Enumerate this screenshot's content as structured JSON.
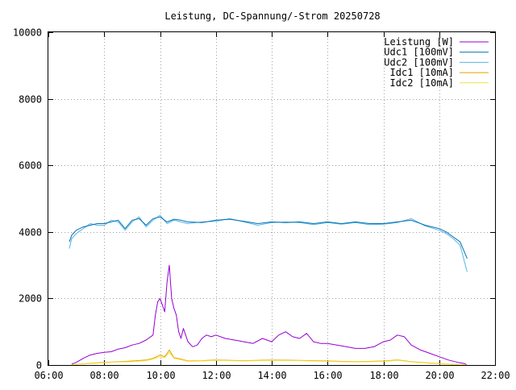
{
  "chart_data": {
    "type": "line",
    "title": "Leistung, DC-Spannung/-Strom 20250728",
    "xlabel": "",
    "ylabel": "",
    "xlim": [
      "06:00",
      "22:00"
    ],
    "ylim": [
      0,
      10000
    ],
    "x_ticks": [
      "06:00",
      "08:00",
      "10:00",
      "12:00",
      "14:00",
      "16:00",
      "18:00",
      "20:00",
      "22:00"
    ],
    "y_ticks": [
      "0",
      "2000",
      "4000",
      "6000",
      "8000",
      "10000"
    ],
    "grid": true,
    "legend_position": "top-right",
    "series": [
      {
        "name": "Leistung [W]",
        "color": "#9400d3",
        "x": [
          "06:50",
          "07:00",
          "07:15",
          "07:30",
          "07:45",
          "08:00",
          "08:15",
          "08:30",
          "08:45",
          "09:00",
          "09:15",
          "09:30",
          "09:45",
          "09:50",
          "09:55",
          "10:00",
          "10:05",
          "10:10",
          "10:15",
          "10:20",
          "10:25",
          "10:30",
          "10:35",
          "10:40",
          "10:45",
          "10:50",
          "11:00",
          "11:10",
          "11:20",
          "11:30",
          "11:40",
          "11:50",
          "12:00",
          "12:20",
          "12:40",
          "13:00",
          "13:20",
          "13:40",
          "14:00",
          "14:15",
          "14:30",
          "14:45",
          "15:00",
          "15:15",
          "15:30",
          "15:45",
          "16:00",
          "16:20",
          "16:40",
          "17:00",
          "17:20",
          "17:40",
          "18:00",
          "18:15",
          "18:30",
          "18:45",
          "19:00",
          "19:20",
          "19:40",
          "20:00",
          "20:20",
          "20:40",
          "20:55",
          "21:00"
        ],
        "values": [
          30,
          80,
          200,
          300,
          350,
          380,
          400,
          480,
          520,
          600,
          650,
          750,
          900,
          1500,
          1900,
          2000,
          1800,
          1600,
          2500,
          3000,
          2000,
          1700,
          1500,
          1000,
          800,
          1100,
          700,
          550,
          600,
          800,
          900,
          850,
          900,
          800,
          750,
          700,
          650,
          800,
          700,
          900,
          1000,
          850,
          800,
          950,
          700,
          650,
          650,
          600,
          550,
          500,
          500,
          550,
          700,
          750,
          900,
          850,
          600,
          450,
          350,
          250,
          150,
          80,
          40,
          0
        ]
      },
      {
        "name": "Udc1 [100mV]",
        "color": "#0072b2",
        "x": [
          "06:45",
          "06:50",
          "07:00",
          "07:15",
          "07:30",
          "07:45",
          "08:00",
          "08:15",
          "08:30",
          "08:45",
          "09:00",
          "09:15",
          "09:30",
          "09:45",
          "10:00",
          "10:15",
          "10:30",
          "10:45",
          "11:00",
          "11:30",
          "12:00",
          "12:30",
          "13:00",
          "13:30",
          "14:00",
          "14:30",
          "15:00",
          "15:30",
          "16:00",
          "16:30",
          "17:00",
          "17:30",
          "18:00",
          "18:30",
          "19:00",
          "19:30",
          "20:00",
          "20:15",
          "20:30",
          "20:45",
          "21:00"
        ],
        "values": [
          3700,
          3900,
          4050,
          4150,
          4200,
          4250,
          4250,
          4300,
          4350,
          4100,
          4350,
          4400,
          4200,
          4400,
          4450,
          4300,
          4380,
          4350,
          4300,
          4280,
          4350,
          4380,
          4320,
          4250,
          4300,
          4280,
          4300,
          4250,
          4300,
          4250,
          4300,
          4250,
          4250,
          4300,
          4350,
          4200,
          4100,
          4000,
          3850,
          3700,
          3200
        ]
      },
      {
        "name": "Udc2 [100mV]",
        "color": "#56b4e9",
        "x": [
          "06:45",
          "06:50",
          "07:00",
          "07:15",
          "07:30",
          "07:45",
          "08:00",
          "08:15",
          "08:30",
          "08:45",
          "09:00",
          "09:15",
          "09:30",
          "09:45",
          "10:00",
          "10:15",
          "10:30",
          "10:45",
          "11:00",
          "11:30",
          "12:00",
          "12:30",
          "13:00",
          "13:30",
          "14:00",
          "14:30",
          "15:00",
          "15:30",
          "16:00",
          "16:30",
          "17:00",
          "17:30",
          "18:00",
          "18:30",
          "19:00",
          "19:30",
          "20:00",
          "20:15",
          "20:30",
          "20:45",
          "21:00"
        ],
        "values": [
          3500,
          3800,
          3950,
          4100,
          4250,
          4200,
          4200,
          4350,
          4300,
          4050,
          4300,
          4450,
          4150,
          4350,
          4500,
          4250,
          4350,
          4300,
          4250,
          4300,
          4320,
          4400,
          4300,
          4200,
          4280,
          4300,
          4280,
          4220,
          4280,
          4230,
          4280,
          4220,
          4230,
          4280,
          4400,
          4180,
          4050,
          3950,
          3800,
          3600,
          2800
        ]
      },
      {
        "name": "Idc1 [10mA]",
        "color": "#e69f00",
        "x": [
          "06:50",
          "07:30",
          "08:00",
          "08:30",
          "09:00",
          "09:30",
          "09:45",
          "10:00",
          "10:10",
          "10:15",
          "10:20",
          "10:30",
          "10:45",
          "11:00",
          "11:30",
          "12:00",
          "13:00",
          "14:00",
          "15:00",
          "16:00",
          "17:00",
          "18:00",
          "18:30",
          "18:45",
          "19:00",
          "19:30",
          "20:00",
          "20:30",
          "21:00"
        ],
        "values": [
          10,
          50,
          80,
          100,
          120,
          150,
          200,
          300,
          250,
          350,
          450,
          220,
          180,
          120,
          130,
          150,
          130,
          150,
          140,
          120,
          100,
          120,
          150,
          130,
          100,
          70,
          40,
          20,
          0
        ]
      },
      {
        "name": "Idc2 [10mA]",
        "color": "#f0e442",
        "x": [
          "06:50",
          "07:30",
          "08:00",
          "08:30",
          "09:00",
          "09:30",
          "09:45",
          "10:00",
          "10:10",
          "10:15",
          "10:20",
          "10:30",
          "10:45",
          "11:00",
          "11:30",
          "12:00",
          "13:00",
          "14:00",
          "15:00",
          "16:00",
          "17:00",
          "18:00",
          "18:30",
          "18:45",
          "19:00",
          "19:30",
          "20:00",
          "20:30",
          "21:00"
        ],
        "values": [
          10,
          40,
          70,
          90,
          100,
          130,
          180,
          250,
          220,
          300,
          380,
          200,
          160,
          110,
          120,
          140,
          120,
          140,
          130,
          110,
          90,
          110,
          140,
          120,
          90,
          60,
          35,
          15,
          0
        ]
      }
    ]
  }
}
